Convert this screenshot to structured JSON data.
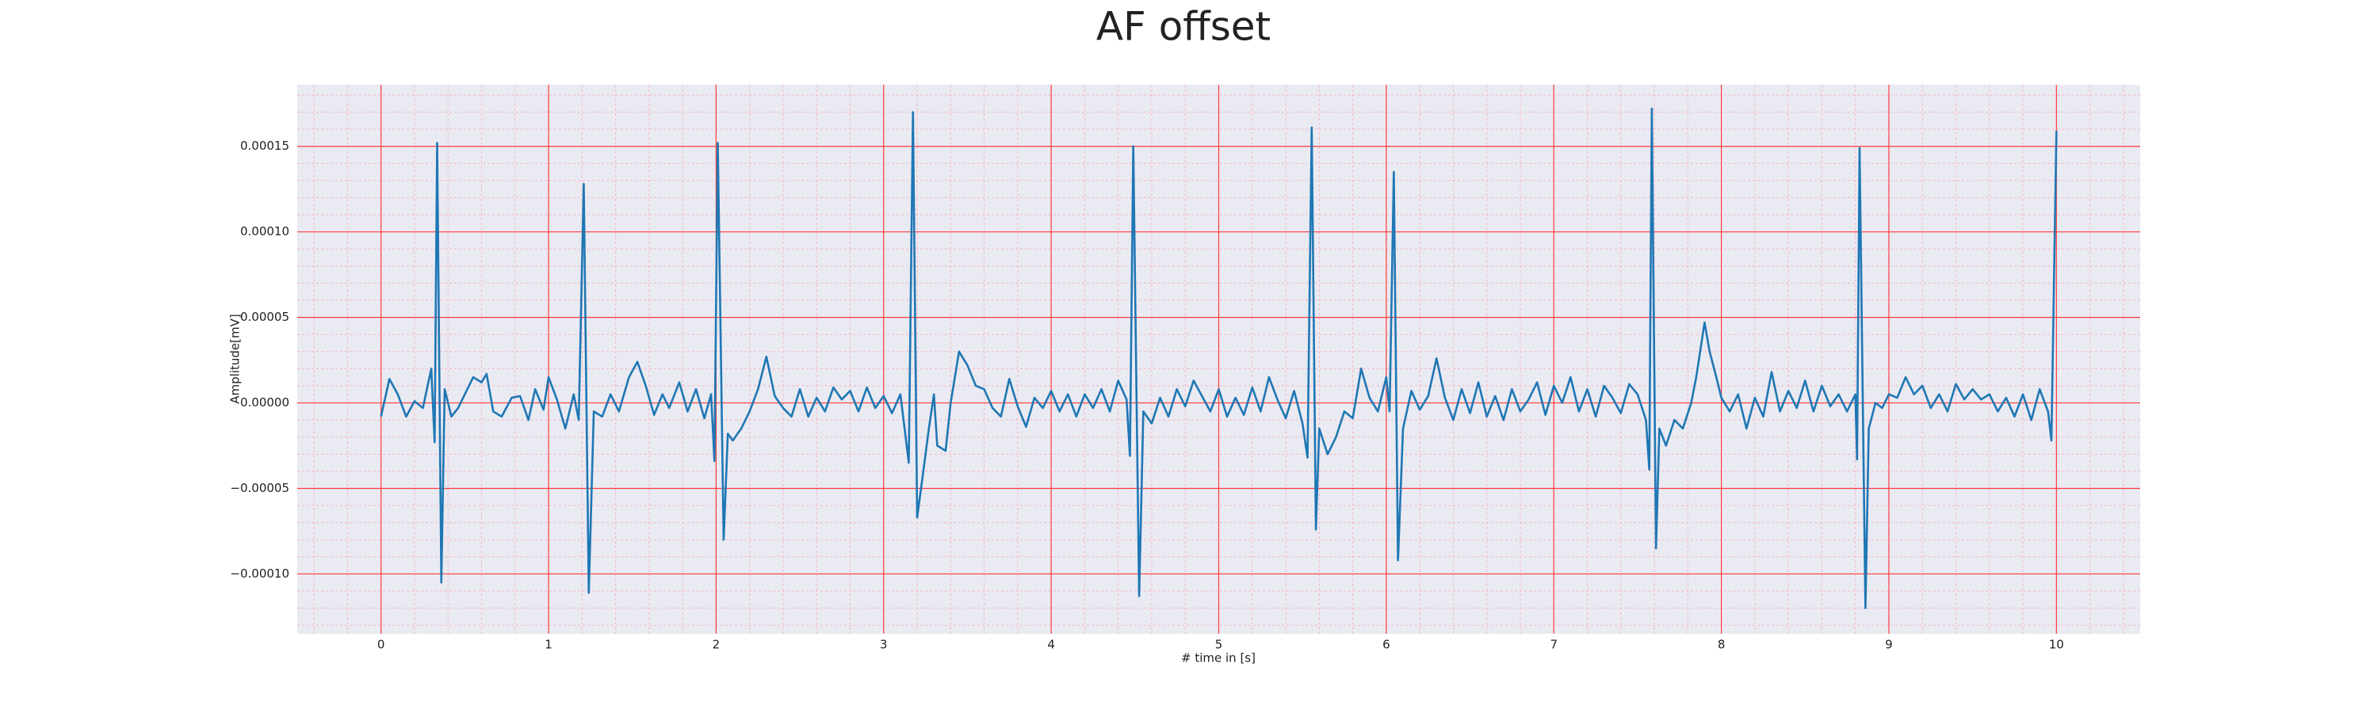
{
  "chart_data": {
    "type": "line",
    "title": "AF offset",
    "x_label": "# time in [s]",
    "y_label": "Amplitude[mV]",
    "color": "#1f77b4",
    "background": "#eaeaf2",
    "grid": true,
    "grid_color": "#ff3b3b",
    "minor_grid_color": "#f4b6c2",
    "xlim": [
      -0.5,
      10.5
    ],
    "ylim": [
      -0.000135,
      0.000186
    ],
    "xticks": [
      0,
      1,
      2,
      3,
      4,
      5,
      6,
      7,
      8,
      9,
      10
    ],
    "yticks": [
      {
        "value": -0.0001,
        "label": "−0.00010"
      },
      {
        "value": -5e-05,
        "label": "−0.00005"
      },
      {
        "value": 0,
        "label": "0.00000"
      },
      5e-05,
      {
        "value": 0.0001,
        "label": "0.00010"
      },
      0.00015
    ],
    "xminorticks": [
      -0.4,
      -0.2,
      0.2,
      0.4,
      0.6,
      0.8,
      1.2,
      1.4,
      1.6,
      1.8,
      2.2,
      2.4,
      2.6,
      2.8,
      3.2,
      3.4,
      3.6,
      3.8,
      4.2,
      4.4,
      4.6,
      4.8,
      5.2,
      5.4,
      5.6,
      5.8,
      6.2,
      6.4,
      6.6,
      6.8,
      7.2,
      7.4,
      7.6,
      7.8,
      8.2,
      8.4,
      8.6,
      8.8,
      9.2,
      9.4,
      9.6,
      9.8,
      10.2,
      10.4
    ],
    "yminorticks": [
      -0.00013,
      -0.00012,
      -0.00011,
      -9e-05,
      -8e-05,
      -7e-05,
      -6e-05,
      -4e-05,
      -3e-05,
      -2e-05,
      -1e-05,
      1e-05,
      2e-05,
      3e-05,
      4e-05,
      6e-05,
      7e-05,
      8e-05,
      9e-05,
      0.00011,
      0.00012,
      0.00013,
      0.00014,
      0.00016,
      0.00017,
      0.00018
    ],
    "x": [
      0,
      0.05,
      0.1,
      0.15,
      0.2,
      0.25,
      0.3,
      0.32,
      0.335,
      0.36,
      0.38,
      0.42,
      0.46,
      0.5,
      0.55,
      0.6,
      0.63,
      0.67,
      0.72,
      0.78,
      0.83,
      0.88,
      0.92,
      0.97,
      1.0,
      1.05,
      1.1,
      1.15,
      1.18,
      1.21,
      1.24,
      1.27,
      1.32,
      1.37,
      1.42,
      1.48,
      1.53,
      1.58,
      1.63,
      1.68,
      1.72,
      1.78,
      1.83,
      1.88,
      1.93,
      1.97,
      1.99,
      2.01,
      2.045,
      2.07,
      2.1,
      2.15,
      2.2,
      2.25,
      2.3,
      2.35,
      2.4,
      2.45,
      2.5,
      2.55,
      2.6,
      2.65,
      2.7,
      2.75,
      2.8,
      2.85,
      2.9,
      2.95,
      3.0,
      3.05,
      3.1,
      3.15,
      3.175,
      3.2,
      3.23,
      3.27,
      3.3,
      3.32,
      3.37,
      3.4,
      3.45,
      3.5,
      3.55,
      3.6,
      3.65,
      3.7,
      3.75,
      3.8,
      3.85,
      3.9,
      3.95,
      4.0,
      4.05,
      4.1,
      4.15,
      4.2,
      4.25,
      4.3,
      4.35,
      4.4,
      4.45,
      4.47,
      4.49,
      4.525,
      4.55,
      4.6,
      4.65,
      4.7,
      4.75,
      4.8,
      4.85,
      4.9,
      4.95,
      5.0,
      5.05,
      5.1,
      5.15,
      5.2,
      5.25,
      5.3,
      5.35,
      5.4,
      5.45,
      5.5,
      5.53,
      5.555,
      5.58,
      5.6,
      5.65,
      5.7,
      5.75,
      5.8,
      5.85,
      5.9,
      5.95,
      6.0,
      6.02,
      6.045,
      6.07,
      6.1,
      6.15,
      6.2,
      6.25,
      6.3,
      6.35,
      6.4,
      6.45,
      6.5,
      6.55,
      6.6,
      6.65,
      6.7,
      6.75,
      6.8,
      6.85,
      6.9,
      6.95,
      7.0,
      7.05,
      7.1,
      7.15,
      7.2,
      7.25,
      7.3,
      7.35,
      7.4,
      7.45,
      7.5,
      7.55,
      7.57,
      7.585,
      7.61,
      7.63,
      7.67,
      7.72,
      7.77,
      7.82,
      7.85,
      7.9,
      7.93,
      7.97,
      8.0,
      8.05,
      8.1,
      8.15,
      8.2,
      8.25,
      8.3,
      8.35,
      8.4,
      8.45,
      8.5,
      8.55,
      8.6,
      8.65,
      8.7,
      8.75,
      8.8,
      8.81,
      8.825,
      8.86,
      8.88,
      8.92,
      8.96,
      9.0,
      9.05,
      9.1,
      9.15,
      9.2,
      9.25,
      9.3,
      9.35,
      9.4,
      9.45,
      9.5,
      9.55,
      9.6,
      9.65,
      9.7,
      9.75,
      9.8,
      9.85,
      9.9,
      9.95,
      9.97,
      10.0
    ],
    "values": [
      -8e-06,
      1.4e-05,
      5e-06,
      -8e-06,
      1e-06,
      -3e-06,
      2e-05,
      -2.3e-05,
      0.000152,
      -0.000105,
      8e-06,
      -8e-06,
      -3e-06,
      5e-06,
      1.5e-05,
      1.2e-05,
      1.7e-05,
      -5e-06,
      -8e-06,
      3e-06,
      4e-06,
      -1e-05,
      8e-06,
      -4e-06,
      1.5e-05,
      2e-06,
      -1.5e-05,
      5e-06,
      -1e-05,
      0.000128,
      -0.000111,
      -5e-06,
      -8e-06,
      5e-06,
      -5e-06,
      1.5e-05,
      2.4e-05,
      1e-05,
      -7e-06,
      5e-06,
      -3e-06,
      1.2e-05,
      -5e-06,
      8e-06,
      -9e-06,
      5e-06,
      -3.4e-05,
      0.000152,
      -8e-05,
      -1.8e-05,
      -2.2e-05,
      -1.5e-05,
      -5e-06,
      8e-06,
      2.7e-05,
      4e-06,
      -3e-06,
      -8e-06,
      8e-06,
      -8e-06,
      3e-06,
      -5e-06,
      9e-06,
      2e-06,
      7e-06,
      -5e-06,
      9e-06,
      -3e-06,
      4e-06,
      -6e-06,
      5e-06,
      -3.5e-05,
      0.00017,
      -6.7e-05,
      -4.5e-05,
      -1.5e-05,
      5e-06,
      -2.5e-05,
      -2.8e-05,
      0,
      3e-05,
      2.2e-05,
      1e-05,
      8e-06,
      -3e-06,
      -8e-06,
      1.4e-05,
      -2e-06,
      -1.4e-05,
      3e-06,
      -3e-06,
      7e-06,
      -5e-06,
      5e-06,
      -8e-06,
      5e-06,
      -3e-06,
      8e-06,
      -5e-06,
      1.3e-05,
      2e-06,
      -3.1e-05,
      0.00015,
      -0.000113,
      -5e-06,
      -1.2e-05,
      3e-06,
      -8e-06,
      8e-06,
      -2e-06,
      1.3e-05,
      4e-06,
      -5e-06,
      8e-06,
      -8e-06,
      3e-06,
      -7e-06,
      9e-06,
      -5e-06,
      1.5e-05,
      2e-06,
      -9e-06,
      7e-06,
      -1.2e-05,
      -3.2e-05,
      0.000161,
      -7.4e-05,
      -1.5e-05,
      -3e-05,
      -2e-05,
      -5e-06,
      -9e-06,
      2e-05,
      3e-06,
      -5e-06,
      1.5e-05,
      -5e-06,
      0.000135,
      -9.2e-05,
      -1.5e-05,
      7e-06,
      -4e-06,
      4e-06,
      2.6e-05,
      3e-06,
      -1e-05,
      8e-06,
      -6e-06,
      1.2e-05,
      -8e-06,
      4e-06,
      -1e-05,
      8e-06,
      -5e-06,
      2e-06,
      1.2e-05,
      -7e-06,
      1e-05,
      0,
      1.5e-05,
      -5e-06,
      8e-06,
      -8e-06,
      1e-05,
      3e-06,
      -6e-06,
      1.1e-05,
      5e-06,
      -1e-05,
      -3.9e-05,
      0.000172,
      -8.5e-05,
      -1.5e-05,
      -2.5e-05,
      -1e-05,
      -1.5e-05,
      0,
      1.5e-05,
      4.7e-05,
      3e-05,
      1.5e-05,
      3e-06,
      -5e-06,
      5e-06,
      -1.5e-05,
      3e-06,
      -8e-06,
      1.8e-05,
      -5e-06,
      7e-06,
      -3e-06,
      1.3e-05,
      -5e-06,
      1e-05,
      -2e-06,
      5e-06,
      -5e-06,
      5e-06,
      -3.3e-05,
      0.000149,
      -0.00012,
      -1.5e-05,
      0,
      -3e-06,
      5e-06,
      3e-06,
      1.5e-05,
      5e-06,
      1e-05,
      -3e-06,
      5e-06,
      -5e-06,
      1.1e-05,
      2e-06,
      8e-06,
      2e-06,
      5e-06,
      -5e-06,
      3e-06,
      -8e-06,
      5e-06,
      -1e-05,
      8e-06,
      -5e-06,
      -2.2e-05,
      0.000159
    ]
  }
}
